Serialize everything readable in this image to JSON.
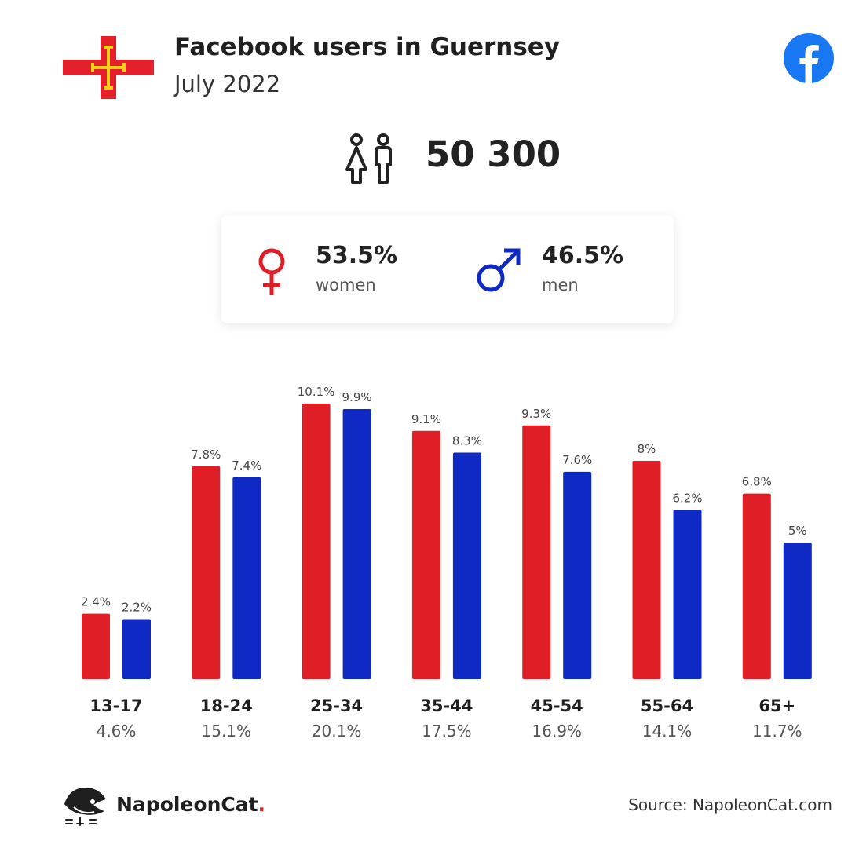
{
  "header": {
    "title": "Facebook users in Guernsey",
    "subtitle": "July 2022"
  },
  "summary": {
    "total_users": "50 300",
    "women": {
      "percent": "53.5%",
      "label": "women"
    },
    "men": {
      "percent": "46.5%",
      "label": "men"
    }
  },
  "colors": {
    "women": "#e01e26",
    "men": "#0f2ac4",
    "facebook": "#1877f2",
    "flag_red": "#e4202c",
    "flag_gold": "#f7d117"
  },
  "icons": {
    "flag": "guernsey-flag-icon",
    "facebook": "facebook-icon",
    "people": "people-icon",
    "female": "female-symbol-icon",
    "male": "male-symbol-icon",
    "brand": "napoleoncat-logo-icon"
  },
  "chart_data": {
    "type": "bar",
    "categories": [
      "13-17",
      "18-24",
      "25-34",
      "35-44",
      "45-54",
      "55-64",
      "65+"
    ],
    "category_totals": [
      "4.6%",
      "15.1%",
      "20.1%",
      "17.5%",
      "16.9%",
      "14.1%",
      "11.7%"
    ],
    "series": [
      {
        "values": [
          2.4,
          7.8,
          10.1,
          9.1,
          9.3,
          8,
          6.8
        ],
        "labels": [
          "2.4%",
          "7.8%",
          "10.1%",
          "9.1%",
          "9.3%",
          "8%",
          "6.8%"
        ]
      },
      {
        "values": [
          2.2,
          7.4,
          9.9,
          8.3,
          7.6,
          6.2,
          5
        ],
        "labels": [
          "2.2%",
          "7.4%",
          "9.9%",
          "8.3%",
          "7.6%",
          "6.2%",
          "5%"
        ]
      }
    ],
    "ylim": [
      0,
      10.1
    ],
    "grid": false
  },
  "footer": {
    "brand_name": "NapoleonCat",
    "brand_dot": ".",
    "source": "Source: NapoleonCat.com"
  }
}
